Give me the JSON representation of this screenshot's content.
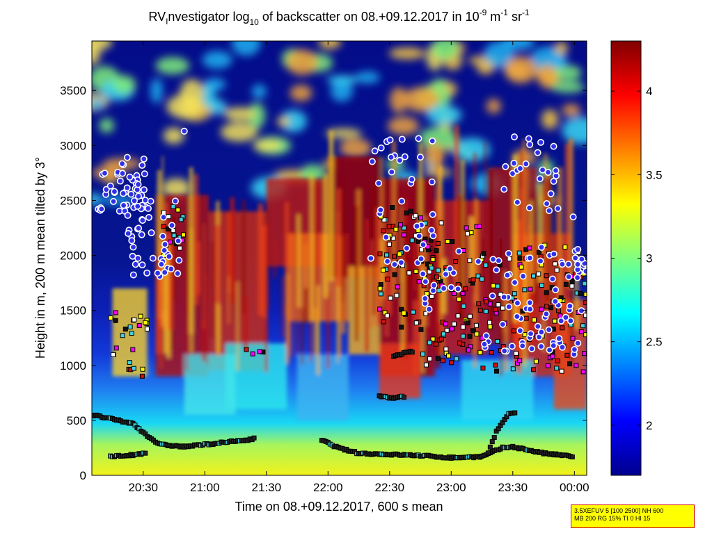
{
  "chart_data": {
    "type": "heatmap",
    "title_parts": {
      "prefix": "RV",
      "prefix_sub": "I",
      "main": "nvestigator log",
      "log_sub": "10",
      "rest": " of backscatter on 08.+09.12.2017 in 10",
      "exp1": "-9",
      "unit_m": " m",
      "exp2": "-1",
      "unit_sr": " sr",
      "exp3": "-1"
    },
    "xlabel": "Time on 08.+09.12.2017, 600 s mean",
    "ylabel": "Height in m, 200 m mean tilted by 3°",
    "x_ticks": [
      "20:30",
      "21:00",
      "21:30",
      "22:00",
      "22:30",
      "23:00",
      "23:30",
      "00:00"
    ],
    "x_tick_minutes": [
      1230,
      1260,
      1290,
      1320,
      1350,
      1380,
      1410,
      1440
    ],
    "xlim_minutes": [
      1205,
      1446
    ],
    "y_ticks": [
      0,
      500,
      1000,
      1500,
      2000,
      2500,
      3000,
      3500
    ],
    "ylim": [
      0,
      3950
    ],
    "colorbar": {
      "ticks": [
        2,
        2.5,
        3,
        3.5,
        4
      ],
      "range": [
        1.7,
        4.3
      ],
      "colormap": "jet"
    },
    "cloud_bases": {
      "low_1": [
        [
          1205,
          550
        ],
        [
          1215,
          510
        ],
        [
          1225,
          470
        ],
        [
          1232,
          360
        ],
        [
          1238,
          280
        ],
        [
          1250,
          260
        ],
        [
          1265,
          290
        ],
        [
          1280,
          320
        ],
        [
          1285,
          340
        ]
      ],
      "low_2": [
        [
          1214,
          170
        ],
        [
          1225,
          185
        ],
        [
          1232,
          200
        ]
      ],
      "low_3": [
        [
          1317,
          320
        ],
        [
          1325,
          250
        ],
        [
          1335,
          200
        ],
        [
          1350,
          190
        ],
        [
          1365,
          180
        ],
        [
          1380,
          160
        ],
        [
          1395,
          170
        ],
        [
          1405,
          250
        ],
        [
          1410,
          260
        ],
        [
          1425,
          200
        ],
        [
          1440,
          170
        ]
      ],
      "mid_1": [
        [
          1352,
          1080
        ],
        [
          1357,
          1110
        ],
        [
          1362,
          1130
        ]
      ],
      "mid_2": [
        [
          1345,
          720
        ],
        [
          1352,
          700
        ],
        [
          1358,
          720
        ]
      ],
      "rise": [
        [
          1398,
          200
        ],
        [
          1402,
          400
        ],
        [
          1408,
          560
        ],
        [
          1412,
          580
        ]
      ]
    },
    "note_lines": [
      "3.5XEFUV 5 [100 2500] NH 600",
      "MB 200 RG 15% TI 0 HI 15"
    ]
  }
}
